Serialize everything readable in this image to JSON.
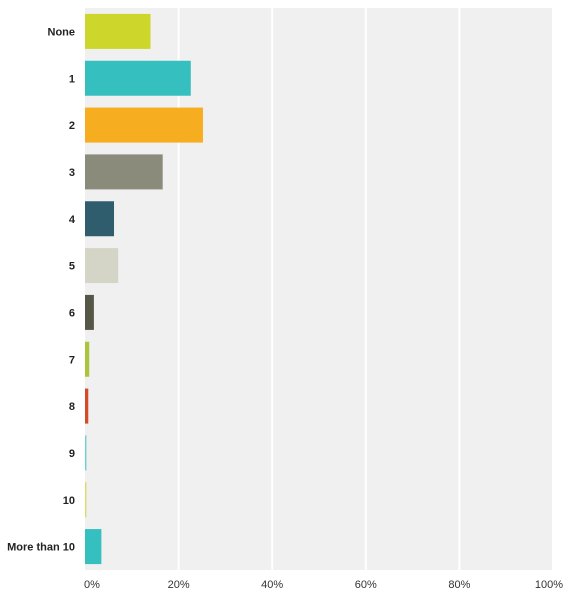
{
  "chart_data": {
    "type": "bar",
    "orientation": "horizontal",
    "categories": [
      "None",
      "1",
      "2",
      "3",
      "4",
      "5",
      "6",
      "7",
      "8",
      "9",
      "10",
      "More than 10"
    ],
    "values": [
      14.0,
      22.6,
      25.2,
      16.6,
      6.2,
      7.1,
      1.9,
      0.9,
      0.7,
      0.3,
      0.3,
      3.5
    ],
    "colors": [
      "#cdd72b",
      "#35bfbf",
      "#f6ad1f",
      "#8a8b7b",
      "#2f5d6e",
      "#d5d5c7",
      "#575747",
      "#aac43b",
      "#d34c2a",
      "#6fcfd1",
      "#d8dd6c",
      "#35bfbf"
    ],
    "xlim": [
      0,
      100
    ],
    "x_ticks": [
      "0%",
      "20%",
      "40%",
      "60%",
      "80%",
      "100%"
    ],
    "x_tick_values": [
      0,
      20,
      40,
      60,
      80,
      100
    ],
    "grid": true,
    "background": "#f0f0f0",
    "gridline_color": "#ffffff"
  }
}
